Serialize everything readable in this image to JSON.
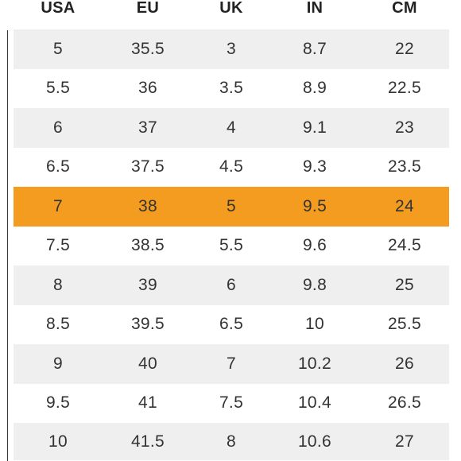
{
  "headers": [
    "USA",
    "EU",
    "UK",
    "IN",
    "CM"
  ],
  "rows": [
    [
      "5",
      "35.5",
      "3",
      "8.7",
      "22"
    ],
    [
      "5.5",
      "36",
      "3.5",
      "8.9",
      "22.5"
    ],
    [
      "6",
      "37",
      "4",
      "9.1",
      "23"
    ],
    [
      "6.5",
      "37.5",
      "4.5",
      "9.3",
      "23.5"
    ],
    [
      "7",
      "38",
      "5",
      "9.5",
      "24"
    ],
    [
      "7.5",
      "38.5",
      "5.5",
      "9.6",
      "24.5"
    ],
    [
      "8",
      "39",
      "6",
      "9.8",
      "25"
    ],
    [
      "8.5",
      "39.5",
      "6.5",
      "10",
      "25.5"
    ],
    [
      "9",
      "40",
      "7",
      "10.2",
      "26"
    ],
    [
      "9.5",
      "41",
      "7.5",
      "10.4",
      "26.5"
    ],
    [
      "10",
      "41.5",
      "8",
      "10.6",
      "27"
    ]
  ],
  "highlight_color": "#f39c1f",
  "stripe_color": "#efefef"
}
